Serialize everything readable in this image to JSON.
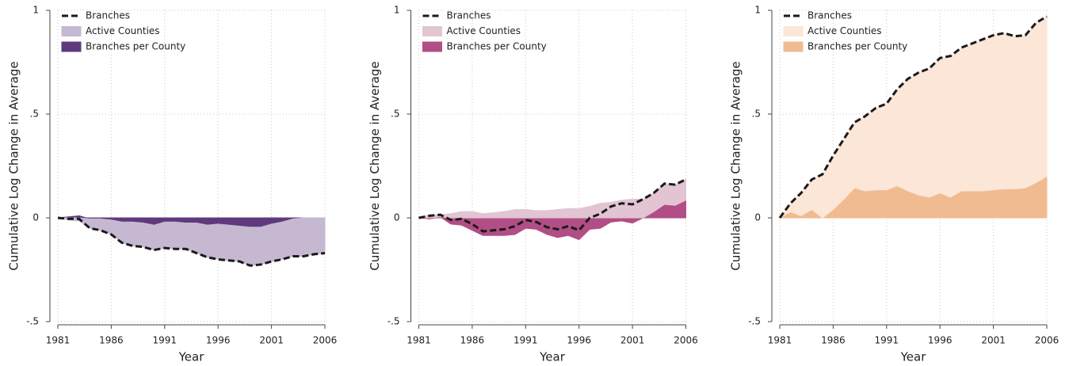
{
  "chart_data": [
    {
      "type": "area",
      "xlabel": "Year",
      "ylabel": "Cumulative Log Change in Average",
      "xlim": [
        1981,
        2006
      ],
      "ylim": [
        -0.5,
        1
      ],
      "xticks": [
        1981,
        1986,
        1991,
        1996,
        2001,
        2006
      ],
      "yticks": [
        {
          "value": -0.5,
          "label": "-.5"
        },
        0,
        {
          "value": 0.5,
          "label": ".5"
        },
        1
      ],
      "grid": true,
      "legend": "upper left",
      "x": [
        1981,
        1982,
        1983,
        1984,
        1985,
        1986,
        1987,
        1988,
        1989,
        1990,
        1991,
        1992,
        1993,
        1994,
        1995,
        1996,
        1997,
        1998,
        1999,
        2000,
        2001,
        2002,
        2003,
        2004,
        2005,
        2006
      ],
      "series": [
        {
          "name": "Branches",
          "kind": "line",
          "color": "#1a1a1a",
          "values": [
            0,
            -0.005,
            -0.005,
            -0.05,
            -0.06,
            -0.08,
            -0.12,
            -0.135,
            -0.14,
            -0.155,
            -0.145,
            -0.15,
            -0.15,
            -0.17,
            -0.19,
            -0.2,
            -0.205,
            -0.21,
            -0.23,
            -0.225,
            -0.21,
            -0.2,
            -0.185,
            -0.185,
            -0.175,
            -0.17
          ]
        },
        {
          "name": "Active Counties",
          "kind": "area",
          "color": "#c6b8d1",
          "values": [
            0,
            -0.01,
            -0.015,
            -0.045,
            -0.055,
            -0.07,
            -0.1,
            -0.115,
            -0.115,
            -0.12,
            -0.125,
            -0.13,
            -0.125,
            -0.145,
            -0.155,
            -0.17,
            -0.17,
            -0.17,
            -0.185,
            -0.18,
            -0.18,
            -0.18,
            -0.18,
            -0.185,
            -0.175,
            -0.17
          ]
        },
        {
          "name": "Branches per County",
          "kind": "area",
          "color": "#5e3a7c",
          "values": [
            0,
            0.005,
            0.01,
            -0.005,
            -0.005,
            -0.01,
            -0.02,
            -0.02,
            -0.025,
            -0.035,
            -0.02,
            -0.02,
            -0.025,
            -0.025,
            -0.035,
            -0.03,
            -0.035,
            -0.04,
            -0.045,
            -0.045,
            -0.03,
            -0.02,
            -0.005,
            0,
            0,
            0
          ]
        }
      ]
    },
    {
      "type": "area",
      "xlabel": "Year",
      "ylabel": "Cumulative Log Change in Average",
      "xlim": [
        1981,
        2006
      ],
      "ylim": [
        -0.5,
        1
      ],
      "xticks": [
        1981,
        1986,
        1991,
        1996,
        2001,
        2006
      ],
      "yticks": [
        {
          "value": -0.5,
          "label": "-.5"
        },
        0,
        {
          "value": 0.5,
          "label": ".5"
        },
        1
      ],
      "grid": true,
      "legend": "upper left",
      "x": [
        1981,
        1982,
        1983,
        1984,
        1985,
        1986,
        1987,
        1988,
        1989,
        1990,
        1991,
        1992,
        1993,
        1994,
        1995,
        1996,
        1997,
        1998,
        1999,
        2000,
        2001,
        2002,
        2003,
        2004,
        2005,
        2006
      ],
      "series": [
        {
          "name": "Branches",
          "kind": "line",
          "color": "#1a1a1a",
          "values": [
            0,
            0.01,
            0.015,
            -0.01,
            -0.005,
            -0.03,
            -0.065,
            -0.06,
            -0.055,
            -0.04,
            -0.01,
            -0.02,
            -0.045,
            -0.055,
            -0.04,
            -0.06,
            0,
            0.02,
            0.055,
            0.07,
            0.065,
            0.09,
            0.12,
            0.165,
            0.16,
            0.185
          ]
        },
        {
          "name": "Active Counties",
          "kind": "area",
          "color": "#e2c4d3",
          "values": [
            0,
            0.015,
            0.01,
            0.02,
            0.03,
            0.03,
            0.02,
            0.025,
            0.03,
            0.04,
            0.04,
            0.035,
            0.035,
            0.04,
            0.045,
            0.045,
            0.055,
            0.07,
            0.075,
            0.085,
            0.09,
            0.09,
            0.09,
            0.1,
            0.1,
            0.1
          ]
        },
        {
          "name": "Branches per County",
          "kind": "area",
          "color": "#b14e85",
          "values": [
            0,
            -0.005,
            0.005,
            -0.03,
            -0.035,
            -0.06,
            -0.085,
            -0.085,
            -0.085,
            -0.08,
            -0.05,
            -0.055,
            -0.08,
            -0.095,
            -0.085,
            -0.105,
            -0.055,
            -0.05,
            -0.02,
            -0.015,
            -0.025,
            0,
            0.03,
            0.065,
            0.06,
            0.085
          ]
        }
      ]
    },
    {
      "type": "area",
      "xlabel": "Year",
      "ylabel": "Cumulative Log Change in Average",
      "xlim": [
        1981,
        2006
      ],
      "ylim": [
        -0.5,
        1
      ],
      "xticks": [
        1981,
        1986,
        1991,
        1996,
        2001,
        2006
      ],
      "yticks": [
        {
          "value": -0.5,
          "label": "-.5"
        },
        0,
        {
          "value": 0.5,
          "label": ".5"
        },
        1
      ],
      "grid": true,
      "legend": "upper left",
      "x": [
        1981,
        1982,
        1983,
        1984,
        1985,
        1986,
        1987,
        1988,
        1989,
        1990,
        1991,
        1992,
        1993,
        1994,
        1995,
        1996,
        1997,
        1998,
        1999,
        2000,
        2001,
        2002,
        2003,
        2004,
        2005,
        2006
      ],
      "series": [
        {
          "name": "Branches",
          "kind": "line",
          "color": "#1a1a1a",
          "values": [
            0,
            0.07,
            0.12,
            0.185,
            0.21,
            0.3,
            0.38,
            0.46,
            0.49,
            0.53,
            0.55,
            0.62,
            0.67,
            0.7,
            0.72,
            0.77,
            0.78,
            0.82,
            0.84,
            0.86,
            0.88,
            0.89,
            0.875,
            0.88,
            0.94,
            0.97
          ]
        },
        {
          "name": "Active Counties",
          "kind": "area",
          "color": "#fbe6d8",
          "values": [
            0,
            0.04,
            0.11,
            0.145,
            0.21,
            0.26,
            0.29,
            0.315,
            0.36,
            0.395,
            0.415,
            0.465,
            0.54,
            0.59,
            0.62,
            0.65,
            0.68,
            0.69,
            0.71,
            0.73,
            0.745,
            0.75,
            0.735,
            0.735,
            0.77,
            0.77
          ]
        },
        {
          "name": "Branches per County",
          "kind": "area",
          "color": "#f0bb91",
          "values": [
            0,
            0.03,
            0.01,
            0.04,
            0,
            0.04,
            0.09,
            0.145,
            0.13,
            0.135,
            0.135,
            0.155,
            0.13,
            0.11,
            0.1,
            0.12,
            0.1,
            0.13,
            0.13,
            0.13,
            0.135,
            0.14,
            0.14,
            0.145,
            0.17,
            0.2
          ]
        }
      ]
    }
  ]
}
